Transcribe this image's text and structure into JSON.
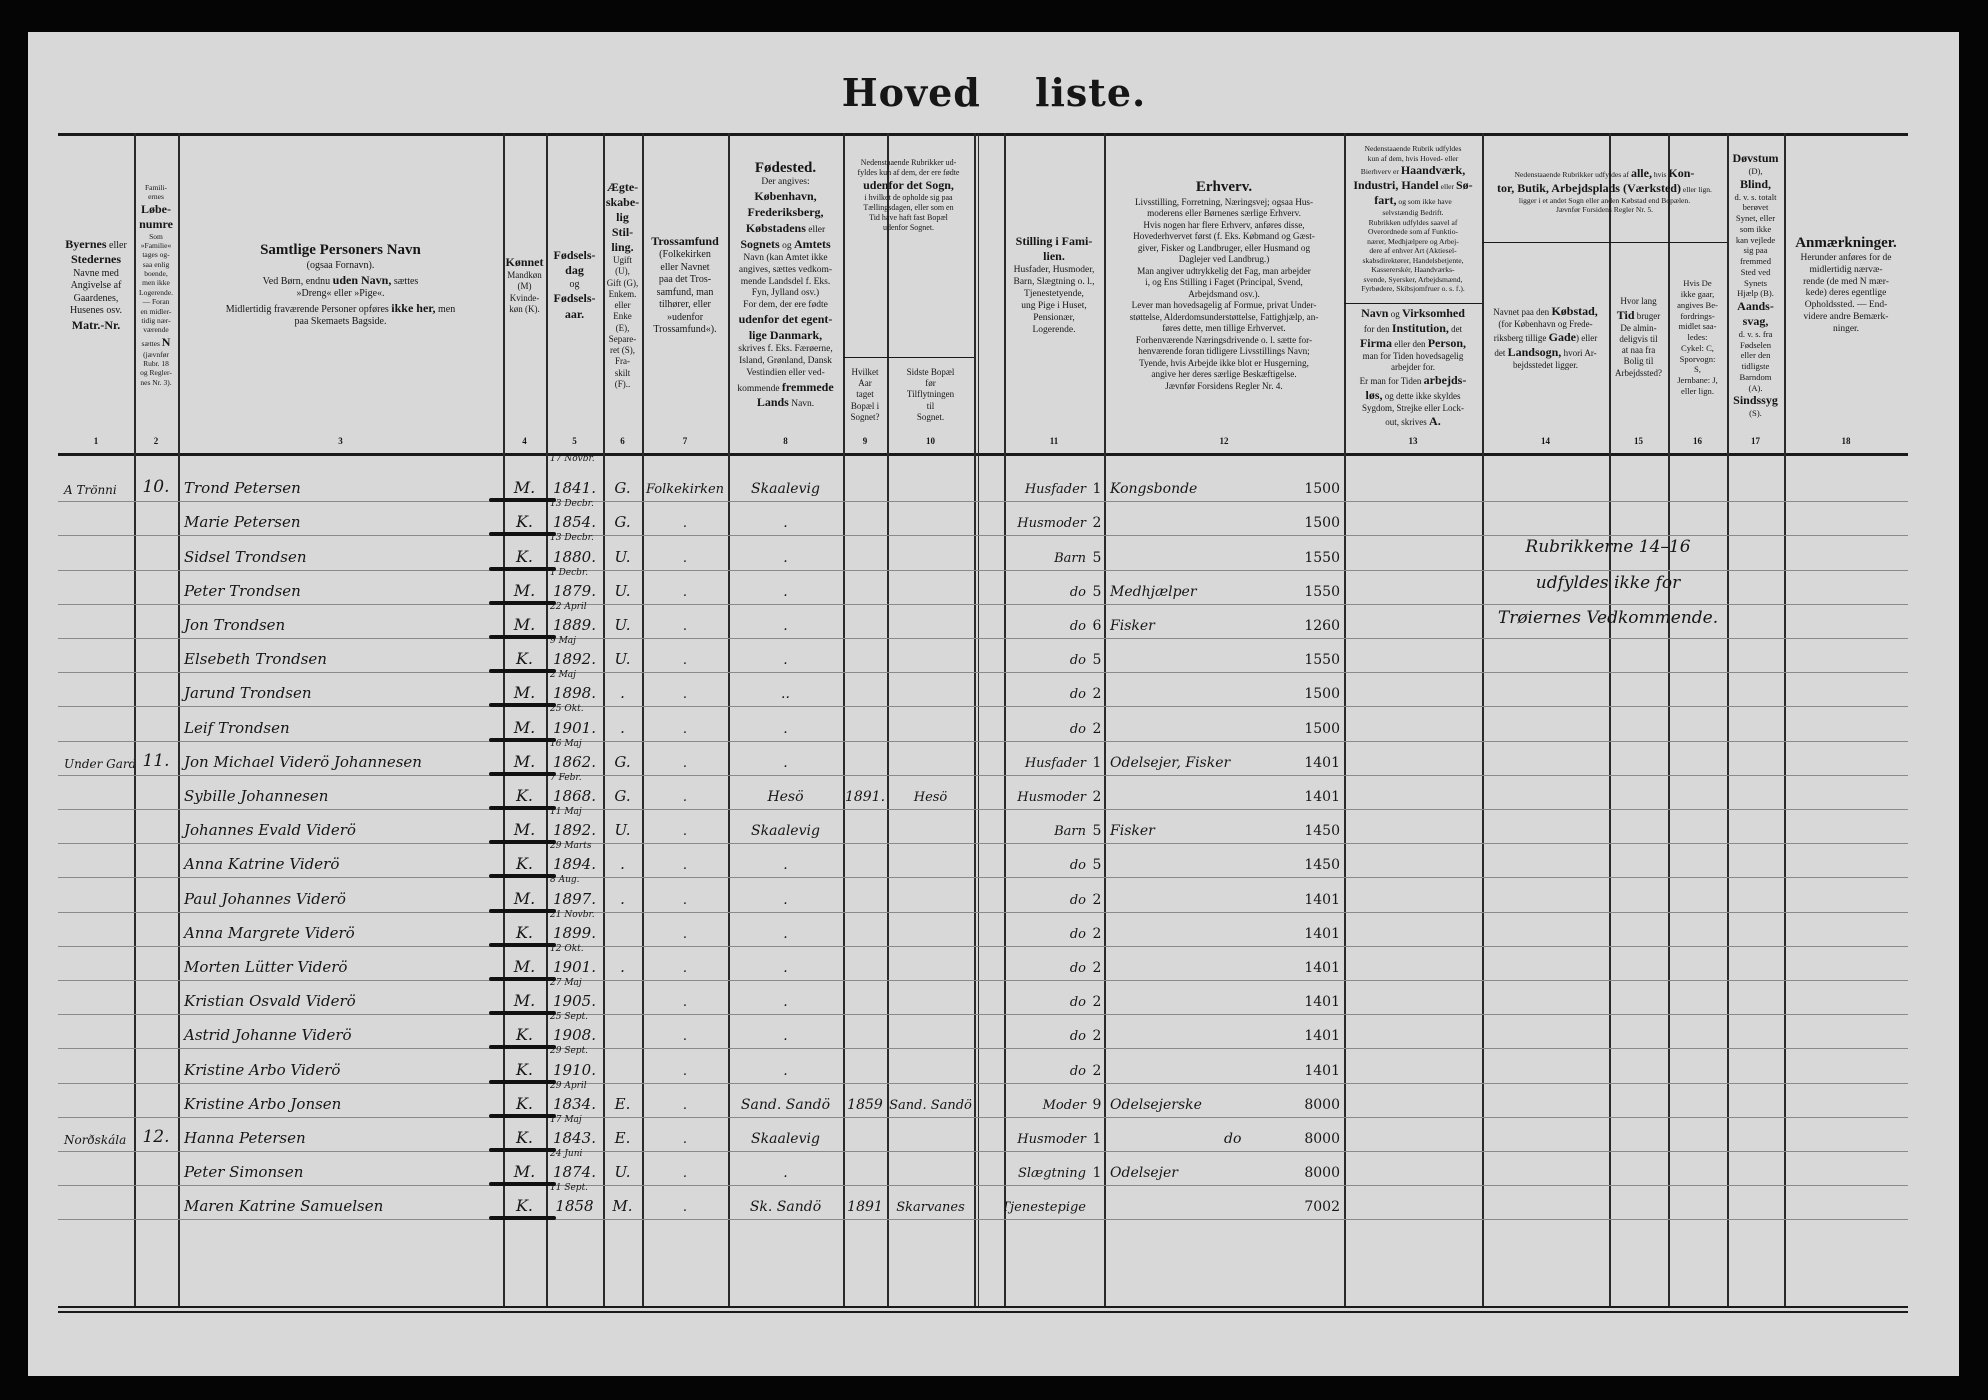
{
  "title": "Hoved liste.",
  "headers": {
    "c1": [
      "<b>Byernes</b> eller",
      "<b>Stedernes</b>",
      "Navne med",
      "Angivelse af",
      "Gaardenes,",
      "Husenes osv.",
      "<b>Matr.-Nr.</b>"
    ],
    "c2": [
      "Famili-",
      "ernes",
      "<b>Løbe-</b>",
      "<b>numre</b>",
      "Som",
      "»Familie«",
      "tages og-",
      "saa enlig",
      "boende,",
      "men ikke",
      "Logerende.",
      "— Foran",
      "en midler-",
      "tidig nær-",
      "værende",
      "sættes <b>N</b>",
      "(jævnfør",
      "Rubr. 18",
      "og Regler-",
      "nes Nr. 3)."
    ],
    "c3": [
      "<span class='big'>Samtlige Personers Navn</span>",
      "(ogsaa Fornavn).",
      "Ved Børn, endnu <b>uden Navn,</b> sættes",
      "»Dreng« eller »Pige«.",
      "Midlertidig fraværende Personer opføres <b>ikke her,</b> men",
      "paa Skemaets Bagside."
    ],
    "c4": [
      "<b>Kønnet</b>",
      "Mandkøn",
      "(M)",
      "Kvinde-",
      "køn (K)."
    ],
    "c5": [
      "<b>Fødsels-</b>",
      "<b>dag</b>",
      "og",
      "<b>Fødsels-</b>",
      "<b>aar.</b>"
    ],
    "c6": [
      "<b>Ægte-</b>",
      "<b>skabe-</b>",
      "<b>lig</b>",
      "<b>Stil-</b>",
      "<b>ling.</b>",
      "Ugift",
      "(U),",
      "Gift (G),",
      "Enkem.",
      "eller",
      "Enke",
      "(E),",
      "Separe-",
      "ret (S),",
      "Fra-",
      "skilt",
      "(F).."
    ],
    "c7": [
      "<b>Trossamfund</b>",
      "(Folkekirken",
      "eller Navnet",
      "paa det Tros-",
      "samfund, man",
      "tilhører, eller",
      "»udenfor",
      "Trossamfund«)."
    ],
    "c8": [
      "<span class='big'>Fødested.</span>",
      "Der angives:",
      "<b>København,</b>",
      "<b>Frederiksberg,</b>",
      "<b>Købstadens</b> eller",
      "<b>Sognets</b> og <b>Amtets</b>",
      "Navn (kan Amtet ikke",
      "angives, sættes vedkom-",
      "mende Landsdel f. Eks.",
      "Fyn, Jylland osv.)",
      "For dem, der ere fødte",
      "<b>udenfor det egent-</b>",
      "<b>lige Danmark,</b>",
      "skrives f. Eks. Færøerne,",
      "Island, Grønland, Dansk",
      "Vestindien eller ved-",
      "kommende <b>fremmede</b>",
      "<b>Lands</b> Navn."
    ],
    "c9_10_top": [
      "Nedenstaaende Rubrikker ud-",
      "fyldes kun af dem, der ere fødte",
      "<b>udenfor det Sogn,</b>",
      "i hvilket de opholde sig paa",
      "Tællingsdagen, eller som en",
      "Tid have haft fast Bopæl",
      "udenfor Sognet."
    ],
    "c9": [
      "Hvilket",
      "Aar",
      "taget",
      "Bopæl i",
      "Sognet?"
    ],
    "c10": [
      "Sidste Bopæl",
      "før",
      "Tilflytningen",
      "til",
      "Sognet."
    ],
    "c11": [
      "<b>Stilling i Fami-</b>",
      "<b>lien.</b>",
      "Husfader, Husmoder,",
      "Barn, Slægtning o. l.,",
      "Tjenestetyende,",
      "ung Pige i Huset,",
      "Pensionær,",
      "Logerende."
    ],
    "c12": [
      "<span class='big'>Erhverv.</span>",
      "Livsstilling, Forretning, Næringsvej; ogsaa Hus-",
      "moderens eller Børnenes særlige Erhverv.",
      "Hvis nogen har flere Erhverv, anføres disse,",
      "Hovederhvervet først (f. Eks. Købmand og Gæst-",
      "giver, Fisker og Landbruger, eller Husmand og",
      "Daglejer ved Landbrug.)",
      "Man angiver udtrykkelig det Fag, man arbejder",
      "i, og Ens Stilling i Faget (Principal, Svend,",
      "Arbejdsmand osv.).",
      "Lever man hovedsagelig af Formue, privat Under-",
      "støttelse, Alderdomsunderstøttelse, Fattighjælp, an-",
      "føres dette, men tillige Erhvervet.",
      "Forhenværende Næringsdrivende o. l. sætte for-",
      "henværende foran tidligere Livsstillings Navn;",
      "Tyende, hvis Arbejde ikke blot er Husgerning,",
      "angive her deres særlige Beskæftigelse.",
      "Jævnfør Forsidens Regler Nr. 4."
    ],
    "c13_top": [
      "Nedenstaaende Rubrik udfyldes",
      "kun af dem, hvis Hoved- eller",
      "Bierhverv er <b>Haandværk,</b>",
      "<b>Industri, Handel</b> eller <b>Sø-</b>",
      "<b>fart,</b> og som ikke have",
      "selvstændig Bedrift.",
      "Rubrikken udfyldes saavel af",
      "Overordnede som af Funktio-",
      "nærer, Medhjælpere og Arbej-",
      "dere af enhver Art (Aktiesel-",
      "skabsdirektører, Handelsbetjente,",
      "Kassererskér, Haandværks-",
      "svende, Syersker, Arbejdsmænd,",
      "Fyrbødere, Skibsjomfruer o. s. f.)."
    ],
    "c13": [
      "<b>Navn</b> og <b>Virksomhed</b>",
      "for den <b>Institution,</b> det",
      "<b>Firma</b> eller den <b>Person,</b>",
      "man for Tiden hovedsagelig",
      "arbejder for.",
      "Er man for Tiden <b>arbejds-</b>",
      "<b>løs,</b> og dette ikke skyldes",
      "Sygdom, Strejke eller Lock-",
      "out, skrives <b>A.</b>"
    ],
    "c14_16_top": [
      "Nedenstaaende Rubrikker udfyldes af <b>alle,</b> hvis <b>Kon-</b>",
      "<b>tor, Butik, Arbejdsplads (Værksted)</b> eller lign.",
      "ligger i et andet Sogn eller anden Købstad end Bopælen.",
      "Jævnfør Forsidens Regler Nr. 5."
    ],
    "c14": [
      "Navnet paa den <b>Købstad,</b>",
      "(for København og Frede-",
      "riksberg tillige <b>Gade</b>) eller",
      "det <b>Landsogn,</b> hvori Ar-",
      "bejdsstedet ligger."
    ],
    "c15": [
      "Hvor lang",
      "<b>Tid</b> bruger",
      "De almin-",
      "deligvis til",
      "at naa fra",
      "Bolig til",
      "Arbejdssted?"
    ],
    "c16": [
      "Hvis De",
      "ikke gaar,",
      "angives Be-",
      "fordrings-",
      "midlet saa-",
      "ledes:",
      "Cykel: C,",
      "Sporvogn:",
      "S,",
      "Jernbane: J,",
      "eller lign."
    ],
    "c17": [
      "<b>Døvstum</b>",
      "(D),",
      "<b>Blind,</b>",
      "d. v. s. totalt",
      "berøvet",
      "Synet, eller",
      "som ikke",
      "kan vejlede",
      "sig paa",
      "fremmed",
      "Sted ved",
      "Synets",
      "Hjælp (B).",
      "<b>Aands-</b>",
      "<b>svag,</b>",
      "d. v. s. fra",
      "Fødselen",
      "eller den",
      "tidligste",
      "Barndom",
      "(A).",
      "<b>Sindssyg</b>",
      "(S)."
    ],
    "c18": [
      "<span class='big'>Anmærkninger.</span>",
      "Herunder anføres for de",
      "midlertidig nærvæ-",
      "rende (de med N mær-",
      "kede) deres egentlige",
      "Opholdssted. — End-",
      "videre andre Bemærk-",
      "ninger."
    ]
  },
  "column_numbers": [
    "1",
    "2",
    "3",
    "4",
    "5",
    "6",
    "7",
    "8",
    "9",
    "10",
    "11",
    "12",
    "13",
    "14",
    "15",
    "16",
    "17",
    "18"
  ],
  "rows": [
    {
      "place": "A Trönni",
      "family": "10.",
      "name": "Trond Petersen",
      "sex": "M.",
      "day": "17 Novbr.",
      "year": "1841.",
      "marital": "G.",
      "religion": "Folkekirken",
      "birthplace": "Skaalevig",
      "moved_year": "",
      "last_residence": "",
      "position": "Husfader",
      "pos_code": "1",
      "occupation": "Kongsbonde",
      "occ_code": "1500"
    },
    {
      "place": "",
      "family": "",
      "name": "Marie Petersen",
      "sex": "K.",
      "day": "13 Decbr.",
      "year": "1854.",
      "marital": "G.",
      "religion": ".",
      "birthplace": ".",
      "moved_year": "",
      "last_residence": "",
      "position": "Husmoder",
      "pos_code": "2",
      "occupation": "",
      "occ_code": "1500"
    },
    {
      "place": "",
      "family": "",
      "name": "Sidsel Trondsen",
      "sex": "K.",
      "day": "13 Decbr.",
      "year": "1880.",
      "marital": "U.",
      "religion": ".",
      "birthplace": ".",
      "moved_year": "",
      "last_residence": "",
      "position": "Barn",
      "pos_code": "5",
      "occupation": "",
      "occ_code": "1550"
    },
    {
      "place": "",
      "family": "",
      "name": "Peter Trondsen",
      "sex": "M.",
      "day": "1 Decbr.",
      "year": "1879.",
      "marital": "U.",
      "religion": ".",
      "birthplace": ".",
      "moved_year": "",
      "last_residence": "",
      "position": "do",
      "pos_code": "5",
      "occupation": "Medhjælper",
      "occ_code": "1550"
    },
    {
      "place": "",
      "family": "",
      "name": "Jon Trondsen",
      "sex": "M.",
      "day": "22 April",
      "year": "1889.",
      "marital": "U.",
      "religion": ".",
      "birthplace": ".",
      "moved_year": "",
      "last_residence": "",
      "position": "do",
      "pos_code": "6",
      "occupation": "Fisker",
      "occ_code": "1260"
    },
    {
      "place": "",
      "family": "",
      "name": "Elsebeth Trondsen",
      "sex": "K.",
      "day": "9 Maj",
      "year": "1892.",
      "marital": "U.",
      "religion": ".",
      "birthplace": ".",
      "moved_year": "",
      "last_residence": "",
      "position": "do",
      "pos_code": "5",
      "occupation": "",
      "occ_code": "1550"
    },
    {
      "place": "",
      "family": "",
      "name": "Jarund Trondsen",
      "sex": "M.",
      "day": "2 Maj",
      "year": "1898.",
      "marital": ".",
      "religion": ".",
      "birthplace": "..",
      "moved_year": "",
      "last_residence": "",
      "position": "do",
      "pos_code": "2",
      "occupation": "",
      "occ_code": "1500"
    },
    {
      "place": "",
      "family": "",
      "name": "Leif Trondsen",
      "sex": "M.",
      "day": "25 Okt.",
      "year": "1901.",
      "marital": ".",
      "religion": ".",
      "birthplace": ".",
      "moved_year": "",
      "last_residence": "",
      "position": "do",
      "pos_code": "2",
      "occupation": "",
      "occ_code": "1500"
    },
    {
      "place": "Under Gardsbrekke",
      "family": "11.",
      "name": "Jon Michael Viderö Johannesen",
      "sex": "M.",
      "day": "16 Maj",
      "year": "1862.",
      "marital": "G.",
      "religion": ".",
      "birthplace": ".",
      "moved_year": "",
      "last_residence": "",
      "position": "Husfader",
      "pos_code": "1",
      "occupation": "Odelsejer, Fisker",
      "occ_code": "1401"
    },
    {
      "place": "",
      "family": "",
      "name": "Sybille Johannesen",
      "sex": "K.",
      "day": "7 Febr.",
      "year": "1868.",
      "marital": "G.",
      "religion": ".",
      "birthplace": "Hesö",
      "moved_year": "1891.",
      "last_residence": "Hesö",
      "position": "Husmoder",
      "pos_code": "2",
      "occupation": "",
      "occ_code": "1401"
    },
    {
      "place": "",
      "family": "",
      "name": "Johannes Evald Viderö",
      "sex": "M.",
      "day": "11 Maj",
      "year": "1892.",
      "marital": "U.",
      "religion": ".",
      "birthplace": "Skaalevig",
      "moved_year": "",
      "last_residence": "",
      "position": "Barn",
      "pos_code": "5",
      "occupation": "Fisker",
      "occ_code": "1450"
    },
    {
      "place": "",
      "family": "",
      "name": "Anna Katrine Viderö",
      "sex": "K.",
      "day": "29 Marts",
      "year": "1894.",
      "marital": ".",
      "religion": ".",
      "birthplace": ".",
      "moved_year": "",
      "last_residence": "",
      "position": "do",
      "pos_code": "5",
      "occupation": "",
      "occ_code": "1450"
    },
    {
      "place": "",
      "family": "",
      "name": "Paul Johannes Viderö",
      "sex": "M.",
      "day": "8 Aug.",
      "year": "1897.",
      "marital": ".",
      "religion": ".",
      "birthplace": ".",
      "moved_year": "",
      "last_residence": "",
      "position": "do",
      "pos_code": "2",
      "occupation": "",
      "occ_code": "1401"
    },
    {
      "place": "",
      "family": "",
      "name": "Anna Margrete Viderö",
      "sex": "K.",
      "day": "21 Novbr.",
      "year": "1899.",
      "marital": "",
      "religion": ".",
      "birthplace": ".",
      "moved_year": "",
      "last_residence": "",
      "position": "do",
      "pos_code": "2",
      "occupation": "",
      "occ_code": "1401"
    },
    {
      "place": "",
      "family": "",
      "name": "Morten Lütter Viderö",
      "sex": "M.",
      "day": "12 Okt.",
      "year": "1901.",
      "marital": ".",
      "religion": ".",
      "birthplace": ".",
      "moved_year": "",
      "last_residence": "",
      "position": "do",
      "pos_code": "2",
      "occupation": "",
      "occ_code": "1401"
    },
    {
      "place": "",
      "family": "",
      "name": "Kristian Osvald Viderö",
      "sex": "M.",
      "day": "27 Maj",
      "year": "1905.",
      "marital": "",
      "religion": ".",
      "birthplace": ".",
      "moved_year": "",
      "last_residence": "",
      "position": "do",
      "pos_code": "2",
      "occupation": "",
      "occ_code": "1401"
    },
    {
      "place": "",
      "family": "",
      "name": "Astrid Johanne Viderö",
      "sex": "K.",
      "day": "25 Sept.",
      "year": "1908.",
      "marital": "",
      "religion": ".",
      "birthplace": ".",
      "moved_year": "",
      "last_residence": "",
      "position": "do",
      "pos_code": "2",
      "occupation": "",
      "occ_code": "1401"
    },
    {
      "place": "",
      "family": "",
      "name": "Kristine Arbo Viderö",
      "sex": "K.",
      "day": "29 Sept.",
      "year": "1910.",
      "marital": "",
      "religion": ".",
      "birthplace": ".",
      "moved_year": "",
      "last_residence": "",
      "position": "do",
      "pos_code": "2",
      "occupation": "",
      "occ_code": "1401"
    },
    {
      "place": "",
      "family": "",
      "name": "Kristine Arbo Jonsen",
      "sex": "K.",
      "day": "29 April",
      "year": "1834.",
      "marital": "E.",
      "religion": ".",
      "birthplace": "Sand. Sandö",
      "moved_year": "1859",
      "last_residence": "Sand. Sandö",
      "position": "Moder",
      "pos_code": "9",
      "occupation": "Odelsejerske",
      "occ_code": "8000"
    },
    {
      "place": "Norðskála",
      "family": "12.",
      "name": "Hanna Petersen",
      "sex": "K.",
      "day": "17 Maj",
      "year": "1843.",
      "marital": "E.",
      "religion": ".",
      "birthplace": "Skaalevig",
      "moved_year": "",
      "last_residence": "",
      "position": "Husmoder",
      "pos_code": "1",
      "occupation": "do",
      "occ_code": "8000"
    },
    {
      "place": "",
      "family": "",
      "name": "Peter Simonsen",
      "sex": "M.",
      "day": "24 Juni",
      "year": "1874.",
      "marital": "U.",
      "religion": ".",
      "birthplace": ".",
      "moved_year": "",
      "last_residence": "",
      "position": "Slægtning",
      "pos_code": "1",
      "occupation": "Odelsejer",
      "occ_code": "8000"
    },
    {
      "place": "",
      "family": "",
      "name": "Maren Katrine Samuelsen",
      "sex": "K.",
      "day": "11 Sept.",
      "year": "1858",
      "marital": "M.",
      "religion": ".",
      "birthplace": "Sk. Sandö",
      "moved_year": "1891",
      "last_residence": "Skarvanes",
      "position": "Tjenestepige",
      "pos_code": "",
      "occupation": "",
      "occ_code": "7002"
    }
  ],
  "note": [
    "Rubrikkerne 14–16",
    "udfyldes ikke for",
    "Trøiernes Vedkommende."
  ]
}
